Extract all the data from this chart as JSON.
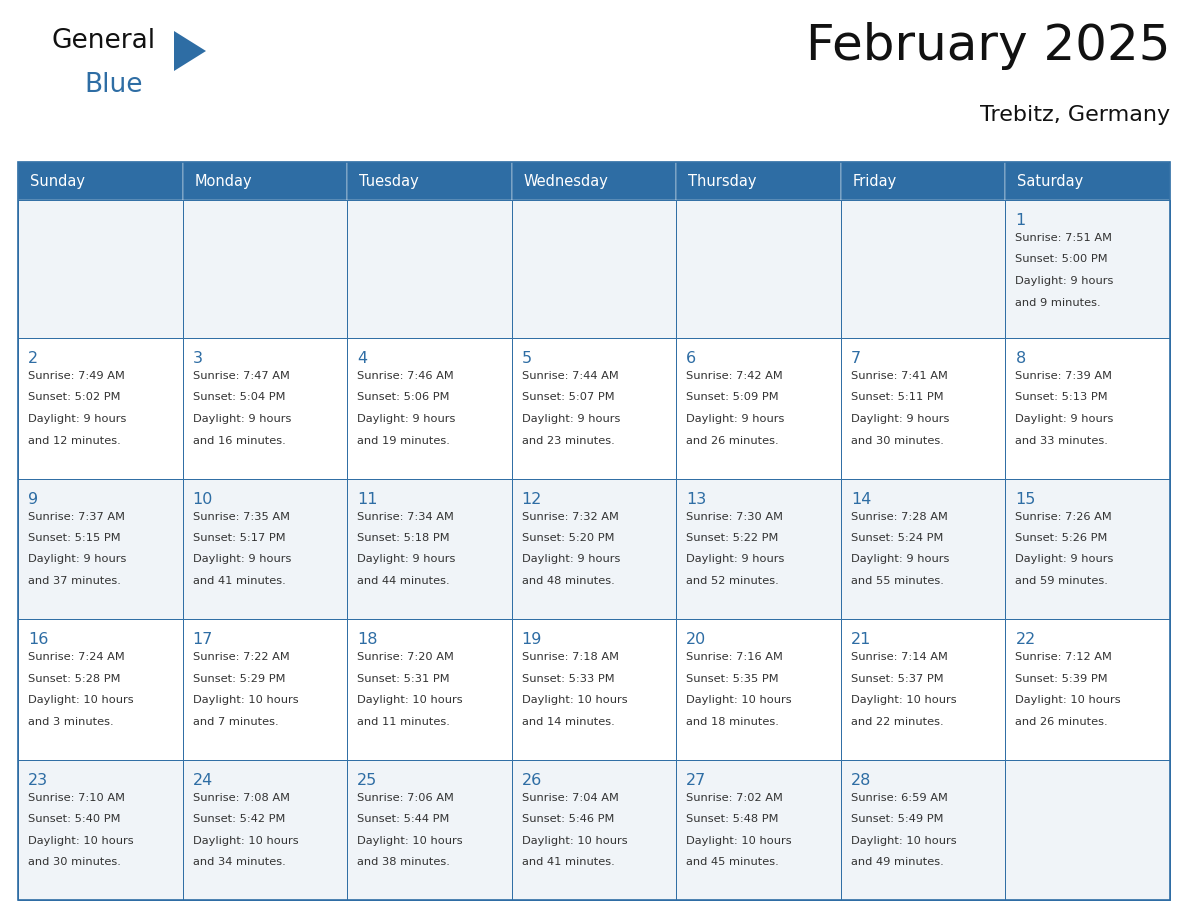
{
  "title": "February 2025",
  "subtitle": "Trebitz, Germany",
  "header_bg": "#2E6DA4",
  "header_text_color": "#FFFFFF",
  "border_color": "#2E6DA4",
  "day_headers": [
    "Sunday",
    "Monday",
    "Tuesday",
    "Wednesday",
    "Thursday",
    "Friday",
    "Saturday"
  ],
  "title_color": "#111111",
  "subtitle_color": "#111111",
  "day_number_color": "#2E6DA4",
  "text_color": "#333333",
  "cell_bg_light": "#F0F4F8",
  "cell_bg_white": "#FFFFFF",
  "logo_color_general": "#111111",
  "logo_color_blue": "#2E6DA4",
  "logo_text_general": "General",
  "logo_text_blue": "Blue",
  "calendar_data": [
    [
      null,
      null,
      null,
      null,
      null,
      null,
      {
        "day": 1,
        "sunrise": "7:51 AM",
        "sunset": "5:00 PM",
        "daylight": "9 hours and 9 minutes."
      }
    ],
    [
      {
        "day": 2,
        "sunrise": "7:49 AM",
        "sunset": "5:02 PM",
        "daylight": "9 hours and 12 minutes."
      },
      {
        "day": 3,
        "sunrise": "7:47 AM",
        "sunset": "5:04 PM",
        "daylight": "9 hours and 16 minutes."
      },
      {
        "day": 4,
        "sunrise": "7:46 AM",
        "sunset": "5:06 PM",
        "daylight": "9 hours and 19 minutes."
      },
      {
        "day": 5,
        "sunrise": "7:44 AM",
        "sunset": "5:07 PM",
        "daylight": "9 hours and 23 minutes."
      },
      {
        "day": 6,
        "sunrise": "7:42 AM",
        "sunset": "5:09 PM",
        "daylight": "9 hours and 26 minutes."
      },
      {
        "day": 7,
        "sunrise": "7:41 AM",
        "sunset": "5:11 PM",
        "daylight": "9 hours and 30 minutes."
      },
      {
        "day": 8,
        "sunrise": "7:39 AM",
        "sunset": "5:13 PM",
        "daylight": "9 hours and 33 minutes."
      }
    ],
    [
      {
        "day": 9,
        "sunrise": "7:37 AM",
        "sunset": "5:15 PM",
        "daylight": "9 hours and 37 minutes."
      },
      {
        "day": 10,
        "sunrise": "7:35 AM",
        "sunset": "5:17 PM",
        "daylight": "9 hours and 41 minutes."
      },
      {
        "day": 11,
        "sunrise": "7:34 AM",
        "sunset": "5:18 PM",
        "daylight": "9 hours and 44 minutes."
      },
      {
        "day": 12,
        "sunrise": "7:32 AM",
        "sunset": "5:20 PM",
        "daylight": "9 hours and 48 minutes."
      },
      {
        "day": 13,
        "sunrise": "7:30 AM",
        "sunset": "5:22 PM",
        "daylight": "9 hours and 52 minutes."
      },
      {
        "day": 14,
        "sunrise": "7:28 AM",
        "sunset": "5:24 PM",
        "daylight": "9 hours and 55 minutes."
      },
      {
        "day": 15,
        "sunrise": "7:26 AM",
        "sunset": "5:26 PM",
        "daylight": "9 hours and 59 minutes."
      }
    ],
    [
      {
        "day": 16,
        "sunrise": "7:24 AM",
        "sunset": "5:28 PM",
        "daylight": "10 hours and 3 minutes."
      },
      {
        "day": 17,
        "sunrise": "7:22 AM",
        "sunset": "5:29 PM",
        "daylight": "10 hours and 7 minutes."
      },
      {
        "day": 18,
        "sunrise": "7:20 AM",
        "sunset": "5:31 PM",
        "daylight": "10 hours and 11 minutes."
      },
      {
        "day": 19,
        "sunrise": "7:18 AM",
        "sunset": "5:33 PM",
        "daylight": "10 hours and 14 minutes."
      },
      {
        "day": 20,
        "sunrise": "7:16 AM",
        "sunset": "5:35 PM",
        "daylight": "10 hours and 18 minutes."
      },
      {
        "day": 21,
        "sunrise": "7:14 AM",
        "sunset": "5:37 PM",
        "daylight": "10 hours and 22 minutes."
      },
      {
        "day": 22,
        "sunrise": "7:12 AM",
        "sunset": "5:39 PM",
        "daylight": "10 hours and 26 minutes."
      }
    ],
    [
      {
        "day": 23,
        "sunrise": "7:10 AM",
        "sunset": "5:40 PM",
        "daylight": "10 hours and 30 minutes."
      },
      {
        "day": 24,
        "sunrise": "7:08 AM",
        "sunset": "5:42 PM",
        "daylight": "10 hours and 34 minutes."
      },
      {
        "day": 25,
        "sunrise": "7:06 AM",
        "sunset": "5:44 PM",
        "daylight": "10 hours and 38 minutes."
      },
      {
        "day": 26,
        "sunrise": "7:04 AM",
        "sunset": "5:46 PM",
        "daylight": "10 hours and 41 minutes."
      },
      {
        "day": 27,
        "sunrise": "7:02 AM",
        "sunset": "5:48 PM",
        "daylight": "10 hours and 45 minutes."
      },
      {
        "day": 28,
        "sunrise": "6:59 AM",
        "sunset": "5:49 PM",
        "daylight": "10 hours and 49 minutes."
      },
      null
    ]
  ]
}
